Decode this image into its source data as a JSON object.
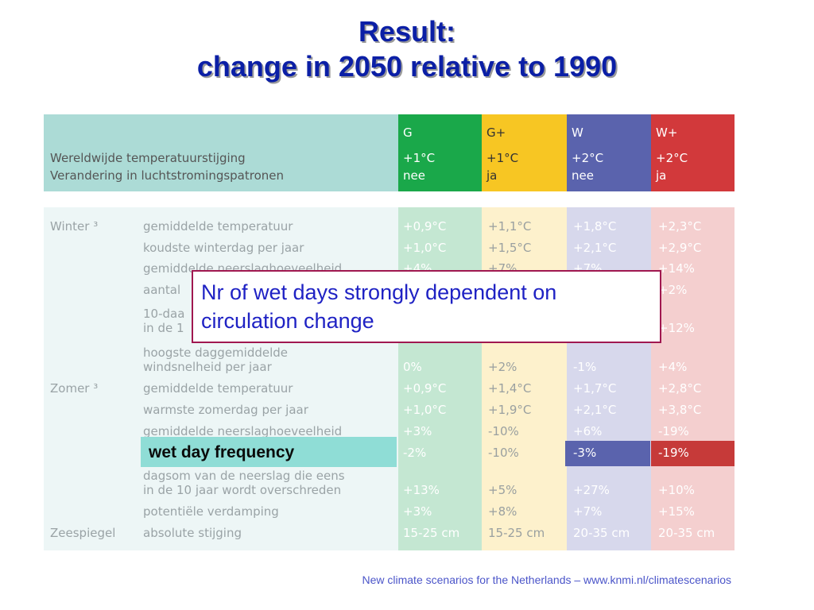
{
  "title": {
    "line1": "Result:",
    "line2": "change in 2050 relative to 1990"
  },
  "header": {
    "label1": "Wereldwijde temperatuurstijging",
    "label2": "Verandering in luchtstromingspatronen",
    "columns": [
      {
        "name": "G",
        "temp": "+1°C",
        "circ": "nee",
        "color": "#1aa84a"
      },
      {
        "name": "G+",
        "temp": "+1°C",
        "circ": "ja",
        "color": "#f7c623"
      },
      {
        "name": "W",
        "temp": "+2°C",
        "circ": "nee",
        "color": "#5a63ad"
      },
      {
        "name": "W+",
        "temp": "+2°C",
        "circ": "ja",
        "color": "#d2393b"
      }
    ]
  },
  "sections": {
    "winter": "Winter ³",
    "zomer": "Zomer ³",
    "zeespiegel": "Zeespiegel"
  },
  "rows": [
    {
      "label": "gemiddelde temperatuur",
      "values": [
        "+0,9°C",
        "+1,1°C",
        "+1,8°C",
        "+2,3°C"
      ]
    },
    {
      "label": "koudste winterdag per jaar",
      "values": [
        "+1,0°C",
        "+1,5°C",
        "+2,1°C",
        "+2,9°C"
      ]
    },
    {
      "label": "gemiddelde neerslaghoeveelheid",
      "values": [
        "+4%",
        "+7%",
        "+7%",
        "+14%"
      ]
    },
    {
      "label": "aantal",
      "values": [
        "",
        "",
        "",
        "+2%"
      ]
    },
    {
      "label": "10-daa",
      "label2": "in de 1",
      "values": [
        "",
        "",
        "",
        "+12%"
      ]
    },
    {
      "label": "hoogste daggemiddelde",
      "label2": "windsnelheid per jaar",
      "values": [
        "0%",
        "+2%",
        "-1%",
        "+4%"
      ]
    },
    {
      "label": "gemiddelde temperatuur",
      "values": [
        "+0,9°C",
        "+1,4°C",
        "+1,7°C",
        "+2,8°C"
      ]
    },
    {
      "label": "warmste zomerdag per jaar",
      "values": [
        "+1,0°C",
        "+1,9°C",
        "+2,1°C",
        "+3,8°C"
      ]
    },
    {
      "label": "gemiddelde neerslaghoeveelheid",
      "values": [
        "+3%",
        "-10%",
        "+6%",
        "-19%"
      ]
    },
    {
      "label": "",
      "values": [
        "-2%",
        "-10%",
        "-3%",
        "-19%"
      ]
    },
    {
      "label": "dagsom van de neerslag die eens",
      "label2": "in de 10 jaar wordt overschreden",
      "values": [
        "+13%",
        "+5%",
        "+27%",
        "+10%"
      ]
    },
    {
      "label": "potentiële verdamping",
      "values": [
        "+3%",
        "+8%",
        "+7%",
        "+15%"
      ]
    },
    {
      "label": "absolute stijging",
      "values": [
        "15-25 cm",
        "15-25 cm",
        "20-35 cm",
        "20-35 cm"
      ]
    }
  ],
  "callout": {
    "line1": "Nr of wet days strongly dependent on",
    "line2": "circulation change"
  },
  "wet_day_label": "wet day frequency",
  "footer": "New climate scenarios for the Netherlands – www.knmi.nl/climatescenarios"
}
